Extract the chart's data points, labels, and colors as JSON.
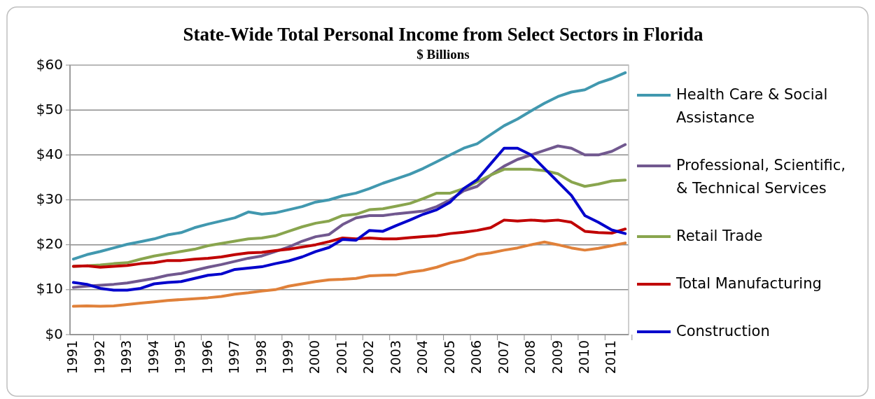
{
  "chart_data": {
    "type": "line",
    "title": "State-Wide Total Personal Income from Select Sectors in Florida",
    "subtitle": "$ Billions",
    "categories": [
      "1991",
      null,
      "1992",
      null,
      "1993",
      null,
      "1994",
      null,
      "1995",
      null,
      "1996",
      null,
      "1997",
      null,
      "1998",
      null,
      "1999",
      null,
      "2000",
      null,
      "2001",
      null,
      "2002",
      null,
      "2003",
      null,
      "2004",
      null,
      "2005",
      null,
      "2006",
      null,
      "2007",
      null,
      "2008",
      null,
      "2009",
      null,
      "2010",
      null,
      "2011",
      null
    ],
    "ylim": [
      0,
      60
    ],
    "yticks": [
      {
        "value": 0,
        "label": "$0"
      },
      {
        "value": 10,
        "label": "$10"
      },
      {
        "value": 20,
        "label": "$20"
      },
      {
        "value": 30,
        "label": "$30"
      },
      {
        "value": 40,
        "label": "$40"
      },
      {
        "value": 50,
        "label": "$50"
      },
      {
        "value": 60,
        "label": "$60"
      }
    ],
    "grid": "y",
    "legend": "right",
    "marker": "none",
    "line_style": "solid",
    "series": [
      {
        "name": "Health Care & Social Assistance",
        "color": "#4198af",
        "values": [
          16.8,
          17.8,
          18.5,
          19.3,
          20.1,
          20.7,
          21.3,
          22.2,
          22.7,
          23.8,
          24.6,
          25.3,
          26.0,
          27.3,
          26.8,
          27.1,
          27.8,
          28.5,
          29.5,
          30.0,
          30.9,
          31.5,
          32.5,
          33.7,
          34.7,
          35.7,
          37.0,
          38.5,
          40.0,
          41.5,
          42.5,
          44.5,
          46.5,
          48.0,
          49.8,
          51.5,
          53.0,
          54.0,
          54.5,
          56.0,
          57.0,
          58.3
        ]
      },
      {
        "name": "Professional, Scientific, & Technical Services",
        "color": "#71588f",
        "values": [
          10.5,
          10.8,
          11.0,
          11.2,
          11.5,
          12.0,
          12.5,
          13.2,
          13.6,
          14.3,
          15.0,
          15.6,
          16.3,
          17.0,
          17.5,
          18.5,
          19.5,
          20.8,
          21.8,
          22.3,
          24.5,
          26.0,
          26.5,
          26.5,
          26.9,
          27.2,
          27.5,
          28.5,
          30.0,
          32.0,
          33.0,
          35.5,
          37.5,
          39.0,
          40.0,
          41.0,
          42.0,
          41.5,
          40.0,
          40.0,
          40.8,
          42.3
        ]
      },
      {
        "name": "Retail Trade",
        "color": "#89a54e",
        "values": [
          15.2,
          15.3,
          15.5,
          15.8,
          16.0,
          16.8,
          17.5,
          18.0,
          18.5,
          19.0,
          19.8,
          20.3,
          20.8,
          21.3,
          21.5,
          22.0,
          23.0,
          24.0,
          24.8,
          25.3,
          26.5,
          26.8,
          27.8,
          28.0,
          28.6,
          29.2,
          30.3,
          31.5,
          31.5,
          32.5,
          34.0,
          35.5,
          36.8,
          36.8,
          36.8,
          36.5,
          35.8,
          34.0,
          33.0,
          33.5,
          34.2,
          34.4
        ]
      },
      {
        "name": "Total Manufacturing",
        "color": "#c00000",
        "values": [
          15.2,
          15.3,
          15.0,
          15.2,
          15.4,
          15.8,
          16.0,
          16.5,
          16.5,
          16.8,
          17.0,
          17.3,
          17.8,
          18.2,
          18.3,
          18.7,
          19.0,
          19.5,
          20.0,
          20.7,
          21.5,
          21.3,
          21.5,
          21.3,
          21.3,
          21.6,
          21.8,
          22.0,
          22.5,
          22.8,
          23.2,
          23.8,
          25.5,
          25.3,
          25.5,
          25.3,
          25.5,
          25.0,
          23.0,
          22.7,
          22.6,
          23.5
        ]
      },
      {
        "name": "Construction",
        "color": "#0000cc",
        "values": [
          11.6,
          11.2,
          10.3,
          9.9,
          9.9,
          10.3,
          11.3,
          11.6,
          11.8,
          12.5,
          13.2,
          13.5,
          14.5,
          14.8,
          15.1,
          15.8,
          16.4,
          17.3,
          18.5,
          19.4,
          21.2,
          21.0,
          23.2,
          23.0,
          24.3,
          25.5,
          26.8,
          27.8,
          29.5,
          32.5,
          34.5,
          38.0,
          41.5,
          41.5,
          40.0,
          37.0,
          34.0,
          31.0,
          26.5,
          25.0,
          23.3,
          22.5
        ]
      },
      {
        "color": "#e0813a",
        "values": [
          6.3,
          6.4,
          6.3,
          6.4,
          6.7,
          7.0,
          7.3,
          7.6,
          7.8,
          8.0,
          8.2,
          8.5,
          9.0,
          9.3,
          9.7,
          10.0,
          10.8,
          11.3,
          11.8,
          12.2,
          12.3,
          12.5,
          13.1,
          13.2,
          13.3,
          13.9,
          14.3,
          15.0,
          16.0,
          16.7,
          17.8,
          18.2,
          18.8,
          19.3,
          20.0,
          20.6,
          20.0,
          19.3,
          18.8,
          19.2,
          19.8,
          20.4
        ]
      }
    ]
  }
}
